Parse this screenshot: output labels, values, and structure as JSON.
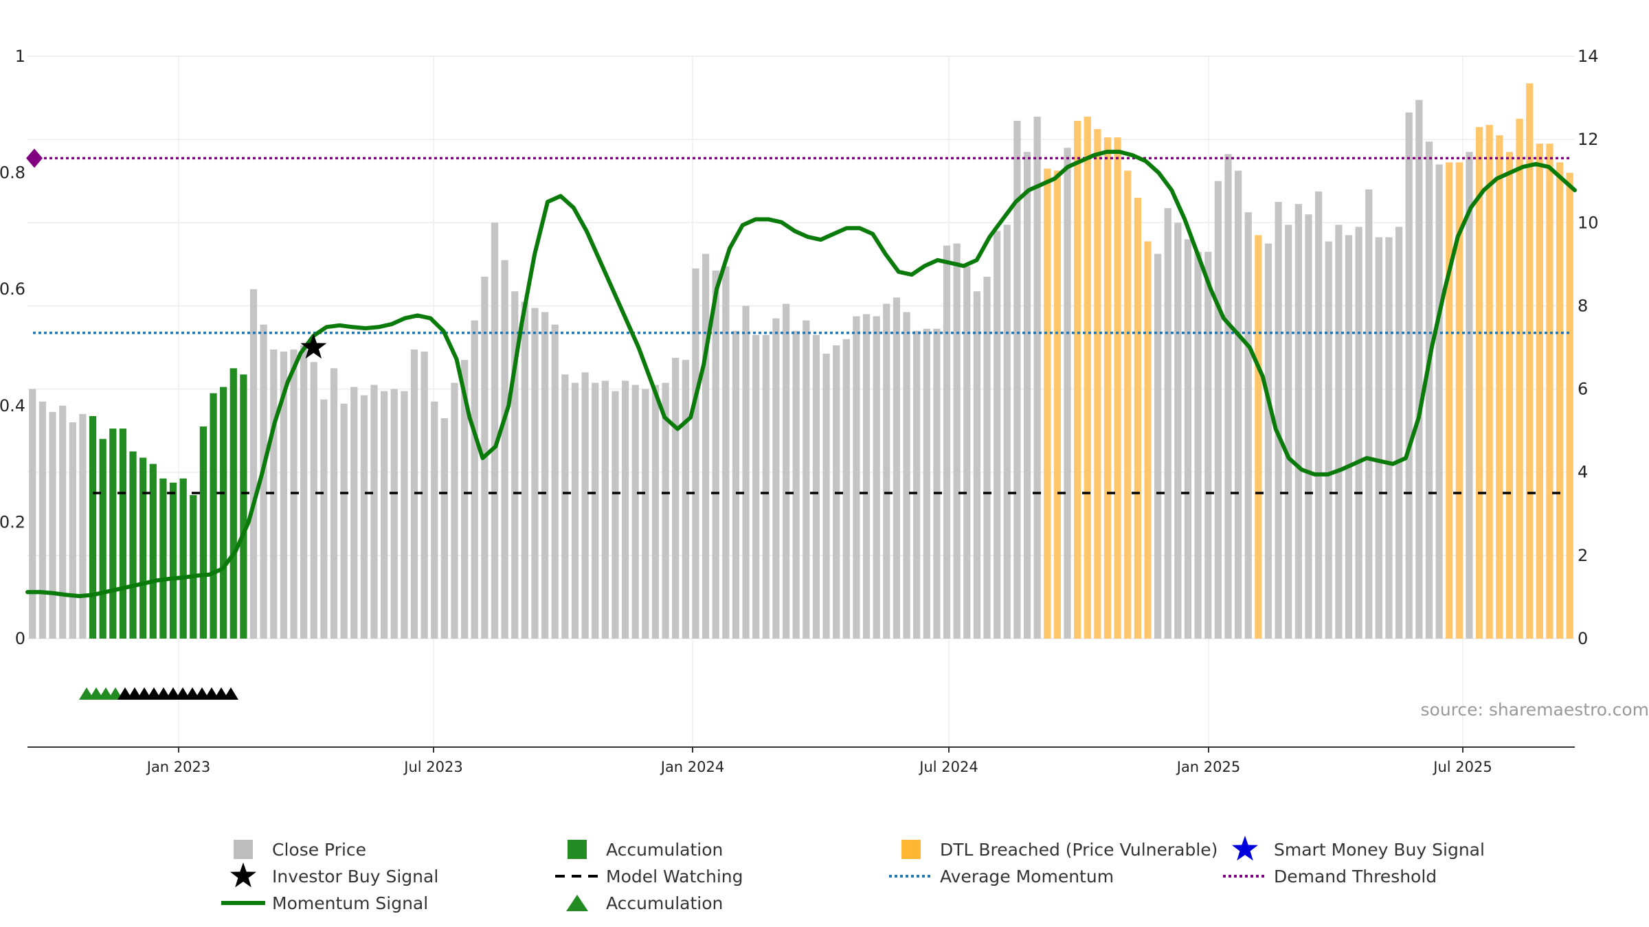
{
  "chart_data": {
    "type": "bar",
    "source_text": "source: sharemaestro.com",
    "x_ticks": [
      "Jan 2023",
      "Jul 2023",
      "Jan 2024",
      "Jul 2024",
      "Jan 2025",
      "Jul 2025"
    ],
    "y_left_ticks": [
      "0",
      "0.2",
      "0.4",
      "0.6",
      "0.8",
      "1"
    ],
    "y_right_ticks": [
      "0",
      "2",
      "4",
      "6",
      "8",
      "10",
      "12",
      "14"
    ],
    "y_left_range": [
      0,
      1
    ],
    "y_right_range": [
      0,
      14
    ],
    "grid": true,
    "legend_position": "bottom",
    "legend": [
      {
        "label": "Close Price",
        "symbol": "square",
        "color": "#bdbdbd"
      },
      {
        "label": "Accumulation",
        "symbol": "square",
        "color": "#228b22"
      },
      {
        "label": "DTL Breached (Price Vulnerable)",
        "symbol": "square",
        "color": "#ffb733"
      },
      {
        "label": "Smart Money Buy Signal",
        "symbol": "star",
        "color": "#0000dd"
      },
      {
        "label": "Investor Buy Signal",
        "symbol": "star",
        "color": "#000000"
      },
      {
        "label": "Model Watching",
        "symbol": "dash",
        "color": "#000000"
      },
      {
        "label": "Average Momentum",
        "symbol": "dot",
        "color": "#1f77b4"
      },
      {
        "label": "Demand Threshold",
        "symbol": "dot",
        "color": "#800080"
      },
      {
        "label": "Momentum Signal",
        "symbol": "line",
        "color": "#0a7a0a"
      },
      {
        "label": "Accumulation",
        "symbol": "triangle",
        "color": "#228b22"
      }
    ],
    "series": [
      {
        "name": "Close Price",
        "axis": "right",
        "values": [
          6.0,
          5.7,
          5.45,
          5.6,
          5.2,
          5.4,
          5.35,
          4.8,
          5.05,
          5.05,
          4.5,
          4.35,
          4.2,
          3.85,
          3.75,
          3.85,
          3.45,
          5.1,
          5.9,
          6.05,
          6.5,
          6.35,
          8.4,
          7.55,
          6.95,
          6.9,
          6.95,
          7.05,
          6.65,
          5.75,
          6.5,
          5.65,
          6.05,
          5.85,
          6.1,
          5.95,
          6.0,
          5.95,
          6.95,
          6.9,
          5.7,
          5.3,
          6.15,
          6.7,
          7.65,
          8.7,
          10.0,
          9.1,
          8.35,
          8.1,
          7.95,
          7.85,
          7.55,
          6.35,
          6.15,
          6.4,
          6.15,
          6.2,
          5.95,
          6.2,
          6.1,
          6.0,
          6.1,
          6.15,
          6.75,
          6.7,
          8.9,
          9.25,
          8.85,
          8.95,
          7.4,
          8.0,
          7.3,
          7.3,
          7.7,
          8.05,
          7.4,
          7.65,
          7.3,
          6.85,
          7.05,
          7.2,
          7.75,
          7.8,
          7.75,
          8.05,
          8.2,
          7.85,
          7.4,
          7.45,
          7.45,
          9.45,
          9.5,
          8.95,
          8.35,
          8.7,
          9.8,
          9.95,
          12.45,
          11.7,
          12.55,
          11.3,
          11.25,
          11.8,
          12.45,
          12.55,
          12.25,
          12.05,
          12.05,
          11.25,
          10.6,
          9.55,
          9.25,
          10.35,
          10.0,
          9.6,
          9.3,
          9.3,
          11.0,
          11.65,
          11.25,
          10.25,
          9.7,
          9.5,
          10.5,
          9.95,
          10.45,
          10.2,
          10.75,
          9.55,
          9.95,
          9.7,
          9.9,
          10.8,
          9.65,
          9.65,
          9.9,
          12.65,
          12.95,
          11.95,
          11.4,
          11.45,
          11.45,
          11.7,
          12.3,
          12.35,
          12.1,
          11.7,
          12.5,
          13.35,
          11.9,
          11.9,
          11.45,
          11.2
        ],
        "color_segments": [
          {
            "start": 6,
            "end": 21,
            "category": "Accumulation"
          },
          {
            "start": 101,
            "end": 102,
            "category": "DTL Breached (Price Vulnerable)"
          },
          {
            "start": 104,
            "end": 111,
            "category": "DTL Breached (Price Vulnerable)"
          },
          {
            "start": 122,
            "end": 122,
            "category": "DTL Breached (Price Vulnerable)"
          },
          {
            "start": 141,
            "end": 142,
            "category": "DTL Breached (Price Vulnerable)"
          },
          {
            "start": 144,
            "end": 155,
            "category": "DTL Breached (Price Vulnerable)"
          }
        ]
      },
      {
        "name": "Momentum Signal",
        "axis": "left",
        "values": [
          0.08,
          0.08,
          0.078,
          0.075,
          0.073,
          0.075,
          0.08,
          0.085,
          0.09,
          0.095,
          0.1,
          0.103,
          0.105,
          0.108,
          0.11,
          0.12,
          0.15,
          0.2,
          0.28,
          0.37,
          0.44,
          0.49,
          0.52,
          0.535,
          0.538,
          0.535,
          0.533,
          0.535,
          0.54,
          0.55,
          0.555,
          0.55,
          0.528,
          0.48,
          0.38,
          0.31,
          0.33,
          0.4,
          0.54,
          0.66,
          0.75,
          0.76,
          0.74,
          0.7,
          0.65,
          0.6,
          0.55,
          0.5,
          0.44,
          0.38,
          0.36,
          0.38,
          0.47,
          0.6,
          0.67,
          0.71,
          0.72,
          0.72,
          0.715,
          0.7,
          0.69,
          0.685,
          0.695,
          0.705,
          0.705,
          0.695,
          0.66,
          0.63,
          0.625,
          0.64,
          0.65,
          0.645,
          0.64,
          0.65,
          0.69,
          0.72,
          0.75,
          0.77,
          0.78,
          0.79,
          0.81,
          0.82,
          0.83,
          0.836,
          0.836,
          0.83,
          0.82,
          0.8,
          0.77,
          0.72,
          0.66,
          0.6,
          0.55,
          0.525,
          0.5,
          0.45,
          0.36,
          0.31,
          0.29,
          0.282,
          0.282,
          0.29,
          0.3,
          0.31,
          0.305,
          0.3,
          0.31,
          0.38,
          0.5,
          0.6,
          0.69,
          0.74,
          0.77,
          0.79,
          0.8,
          0.81,
          0.815,
          0.81,
          0.79,
          0.77
        ],
        "legend_color_segments": [
          {
            "from_index": 0,
            "to_index": 22,
            "color": "#3b8e3b"
          },
          {
            "from_index": 22,
            "to_index": 33,
            "color": "#0a7a0a"
          },
          {
            "from_index": 33,
            "to_index": 40,
            "color": "#3b8e3b"
          },
          {
            "from_index": 40,
            "to_index": 44,
            "color": "#0a7a0a"
          }
        ]
      }
    ],
    "average_momentum": 0.525,
    "demand_threshold": 0.825,
    "model_watching_level": 0.25,
    "investor_buy_signal": {
      "date_index": 22,
      "value": 0.5
    },
    "accumulation_triangles": {
      "green": 4,
      "black": 12
    }
  }
}
